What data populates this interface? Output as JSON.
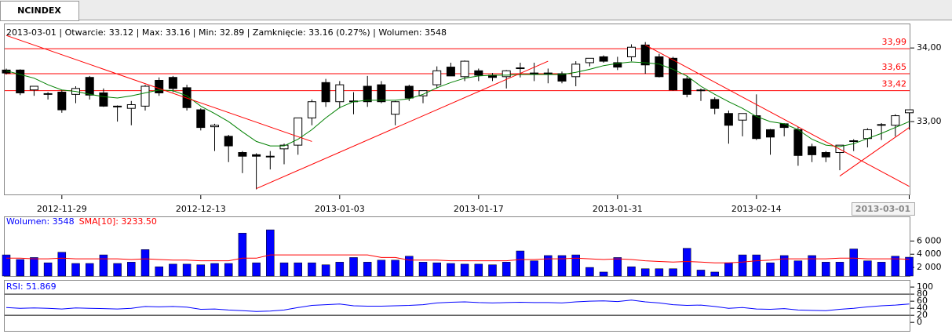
{
  "tab": "NCINDEX",
  "chart_data": [
    {
      "type": "candlestick",
      "info": "2013-03-01 | Otwarcie: 33.12 | Max: 33.16 | Min: 32.89 | Zamknięcie: 33.16 (0.27%)  | Wolumen: 3548",
      "categories": [
        null,
        null,
        null,
        null,
        "2012-11-29",
        null,
        null,
        null,
        null,
        null,
        null,
        null,
        null,
        null,
        "2012-12-13",
        null,
        null,
        null,
        null,
        null,
        null,
        null,
        null,
        null,
        "2013-01-03",
        null,
        null,
        null,
        null,
        null,
        null,
        null,
        null,
        null,
        "2013-01-17",
        null,
        null,
        null,
        null,
        null,
        null,
        null,
        null,
        null,
        "2013-01-31",
        null,
        null,
        null,
        null,
        null,
        null,
        null,
        null,
        null,
        "2013-02-14",
        null,
        null,
        null,
        null,
        null,
        null,
        null,
        null,
        null,
        null,
        "2013-03-01"
      ],
      "open": [
        33.7,
        33.7,
        33.43,
        33.38,
        33.4,
        33.37,
        33.6,
        33.39,
        33.2,
        33.18,
        33.21,
        33.56,
        33.6,
        33.46,
        33.16,
        32.93,
        32.8,
        32.58,
        32.55,
        32.53,
        32.63,
        32.68,
        33.05,
        33.53,
        33.27,
        33.28,
        33.48,
        33.5,
        33.1,
        33.48,
        33.35,
        33.5,
        33.74,
        33.61,
        33.69,
        33.63,
        33.61,
        33.73,
        33.66,
        33.66,
        33.65,
        33.61,
        33.8,
        33.88,
        33.8,
        33.88,
        34.04,
        33.88,
        33.86,
        33.58,
        33.42,
        33.3,
        33.11,
        33.02,
        33.08,
        32.89,
        32.97,
        32.89,
        32.66,
        32.58,
        32.58,
        32.73,
        32.77,
        32.95,
        32.95,
        33.12
      ],
      "high": [
        33.72,
        33.71,
        33.48,
        33.4,
        33.43,
        33.48,
        33.62,
        33.45,
        33.22,
        33.28,
        33.5,
        33.6,
        33.62,
        33.5,
        33.18,
        32.97,
        32.82,
        32.6,
        32.57,
        32.6,
        32.7,
        33.05,
        33.3,
        33.58,
        33.55,
        33.4,
        33.62,
        33.55,
        33.28,
        33.5,
        33.42,
        33.75,
        33.8,
        33.83,
        33.72,
        33.66,
        33.7,
        33.8,
        33.8,
        33.72,
        33.68,
        33.82,
        33.86,
        33.9,
        33.88,
        34.05,
        34.08,
        33.92,
        33.88,
        33.62,
        33.45,
        33.33,
        33.15,
        33.11,
        33.37,
        32.9,
        32.98,
        32.93,
        32.7,
        32.6,
        32.68,
        32.76,
        32.91,
        32.98,
        33.1,
        33.16
      ],
      "low": [
        33.64,
        33.36,
        33.35,
        33.3,
        33.12,
        33.25,
        33.3,
        33.2,
        33.0,
        32.95,
        33.15,
        33.35,
        33.4,
        33.15,
        32.88,
        32.6,
        32.45,
        32.3,
        32.08,
        32.35,
        32.42,
        32.55,
        32.95,
        33.2,
        33.18,
        33.1,
        33.2,
        33.25,
        32.95,
        33.28,
        33.25,
        33.45,
        33.62,
        33.55,
        33.55,
        33.55,
        33.45,
        33.6,
        33.55,
        33.52,
        33.52,
        33.48,
        33.75,
        33.8,
        33.7,
        33.82,
        33.65,
        33.6,
        33.42,
        33.33,
        33.28,
        33.1,
        32.7,
        32.8,
        32.75,
        32.55,
        32.8,
        32.4,
        32.45,
        32.45,
        32.34,
        32.6,
        32.65,
        32.75,
        32.8,
        32.89
      ],
      "close": [
        33.66,
        33.39,
        33.48,
        33.37,
        33.16,
        33.45,
        33.36,
        33.21,
        33.21,
        33.23,
        33.48,
        33.39,
        33.45,
        33.19,
        32.92,
        32.95,
        32.67,
        32.53,
        32.53,
        32.52,
        32.68,
        33.05,
        33.27,
        33.27,
        33.5,
        33.27,
        33.27,
        33.27,
        33.27,
        33.32,
        33.42,
        33.69,
        33.62,
        33.82,
        33.63,
        33.6,
        33.69,
        33.72,
        33.66,
        33.65,
        33.55,
        33.78,
        33.86,
        33.82,
        33.74,
        34.01,
        33.77,
        33.61,
        33.43,
        33.37,
        33.43,
        33.18,
        32.95,
        33.11,
        32.77,
        32.79,
        32.92,
        32.54,
        32.55,
        32.52,
        32.68,
        32.74,
        32.89,
        32.96,
        33.08,
        33.16
      ],
      "up_color": "#ffffff",
      "down_color": "#000000",
      "ma": {
        "color": "#008000",
        "values": [
          33.69,
          33.64,
          33.59,
          33.5,
          33.43,
          33.41,
          33.37,
          33.34,
          33.32,
          33.35,
          33.39,
          33.43,
          33.42,
          33.35,
          33.21,
          33.11,
          33.0,
          32.86,
          32.73,
          32.67,
          32.67,
          32.76,
          32.89,
          33.05,
          33.19,
          33.27,
          33.29,
          33.29,
          33.29,
          33.31,
          33.37,
          33.46,
          33.53,
          33.59,
          33.62,
          33.63,
          33.63,
          33.64,
          33.64,
          33.64,
          33.64,
          33.67,
          33.71,
          33.76,
          33.79,
          33.81,
          33.8,
          33.78,
          33.71,
          33.62,
          33.48,
          33.37,
          33.27,
          33.18,
          33.07,
          33.0,
          32.97,
          32.89,
          32.76,
          32.68,
          32.66,
          32.7,
          32.77,
          32.84,
          32.92,
          33.0
        ]
      },
      "ylim": [
        32.0,
        34.3
      ],
      "yticks": [
        {
          "value": 34,
          "label": "34,00"
        },
        {
          "value": 33,
          "label": "33,00"
        }
      ],
      "hlines": [
        {
          "value": 33.99,
          "label": "33,99"
        },
        {
          "value": 33.65,
          "label": "33,65"
        },
        {
          "value": 33.42,
          "label": "33,42"
        }
      ],
      "line_color": "#ff0000",
      "trendlines": [
        {
          "x": [
            0,
            22
          ],
          "y": [
            34.17,
            32.73
          ]
        },
        {
          "x": [
            18,
            39
          ],
          "y": [
            32.09,
            33.82
          ]
        },
        {
          "x": [
            46,
            65
          ],
          "y": [
            34.04,
            32.12
          ]
        },
        {
          "x": [
            60,
            65
          ],
          "y": [
            32.26,
            32.92
          ]
        }
      ]
    },
    {
      "type": "bar",
      "series": [
        {
          "name": "Wolumen: 3548",
          "color": "#0000ff",
          "values": [
            3900,
            3200,
            3500,
            2700,
            4300,
            2600,
            2600,
            3900,
            2600,
            2800,
            4700,
            2100,
            2500,
            2500,
            2400,
            2600,
            2600,
            7200,
            2700,
            7700,
            2700,
            2700,
            2700,
            2400,
            2800,
            3500,
            2800,
            3100,
            3100,
            3700,
            2800,
            2700,
            2600,
            2500,
            2500,
            2400,
            2800,
            4500,
            3000,
            3800,
            3800,
            3900,
            2000,
            1300,
            3500,
            2100,
            1800,
            1800,
            1800,
            4900,
            1600,
            1300,
            2700,
            3900,
            3900,
            2700,
            3800,
            3000,
            3800,
            2800,
            2800,
            4800,
            3000,
            2800,
            3700,
            3548
          ]
        },
        {
          "name": "SMA[10]: 3233.50",
          "color": "#ff0000",
          "type": "line",
          "values": [
            3400,
            3400,
            3300,
            3300,
            3400,
            3300,
            3300,
            3300,
            3300,
            3200,
            3300,
            3200,
            3100,
            3100,
            3000,
            3000,
            3000,
            3400,
            3400,
            3900,
            3900,
            3900,
            3900,
            3900,
            3900,
            3900,
            3900,
            3500,
            3500,
            3100,
            3100,
            3100,
            3000,
            3000,
            3000,
            3000,
            3000,
            3200,
            3200,
            3300,
            3300,
            3400,
            3300,
            3200,
            3300,
            3200,
            3000,
            2900,
            2800,
            2900,
            2800,
            2700,
            2700,
            2800,
            3000,
            3100,
            3300,
            3300,
            3300,
            3300,
            3400,
            3400,
            3300,
            3300,
            3300,
            3233.5
          ]
        }
      ],
      "ylim": [
        700,
        8900
      ],
      "yticks": [
        {
          "value": 2000,
          "label": "2 000"
        },
        {
          "value": 4000,
          "label": "4 000"
        },
        {
          "value": 6000,
          "label": "6 000"
        }
      ]
    },
    {
      "type": "line",
      "series": [
        {
          "name": "RSI: 51.869",
          "color": "#0000ff",
          "values": [
            42,
            40,
            41,
            40,
            38,
            41,
            40,
            39,
            38,
            40,
            45,
            44,
            45,
            43,
            37,
            38,
            35,
            33,
            31,
            32,
            35,
            42,
            48,
            50,
            52,
            47,
            46,
            46,
            47,
            48,
            50,
            55,
            57,
            58,
            56,
            55,
            56,
            57,
            56,
            56,
            55,
            58,
            60,
            61,
            59,
            63,
            58,
            55,
            50,
            48,
            49,
            45,
            40,
            42,
            38,
            37,
            39,
            35,
            34,
            33,
            37,
            40,
            44,
            47,
            49,
            51.869
          ]
        }
      ],
      "ylim": [
        -24,
        118
      ],
      "yticks": [
        0,
        20,
        40,
        60,
        80,
        100
      ],
      "hlines": [
        80,
        20
      ]
    }
  ]
}
